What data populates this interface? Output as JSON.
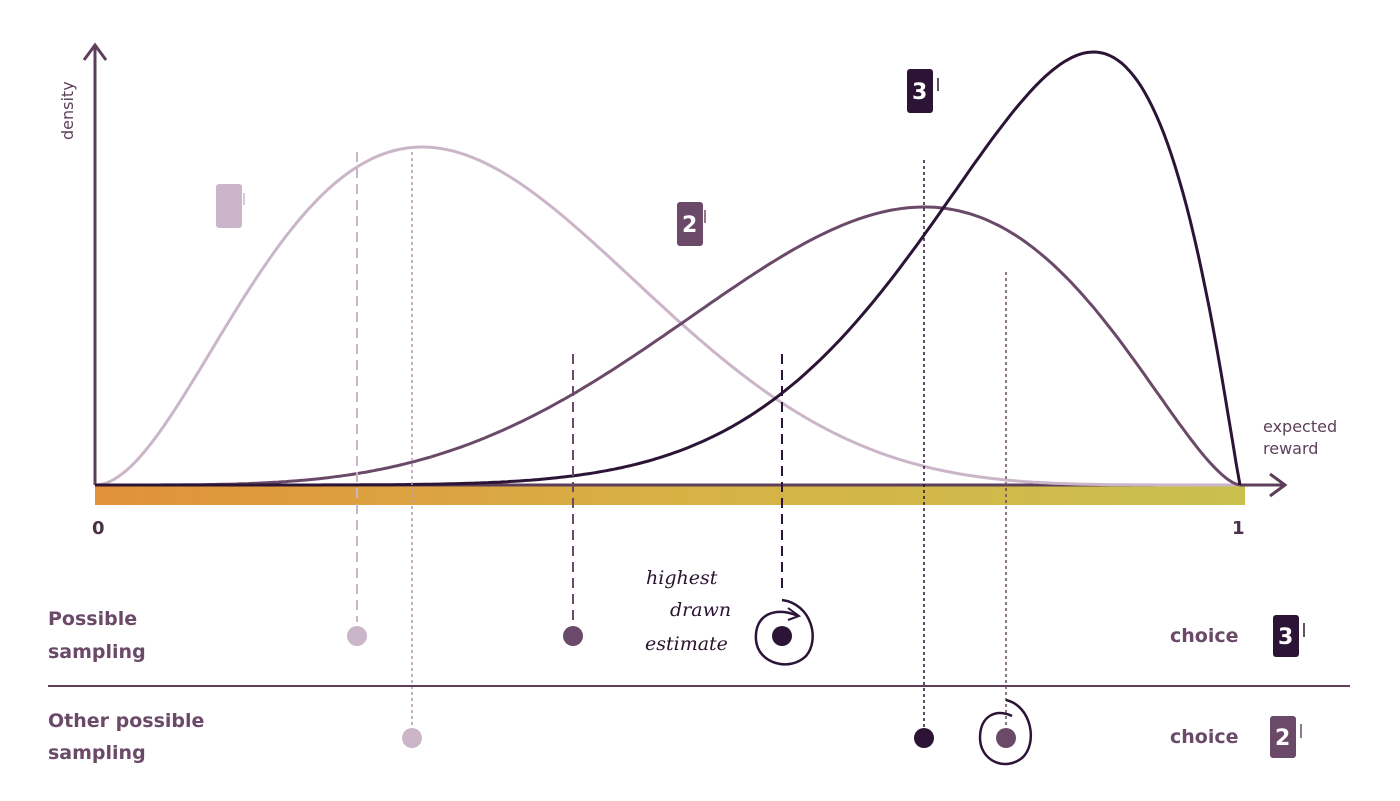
{
  "axes": {
    "y_label": "density",
    "x_label_line1": "expected",
    "x_label_line2": "reward",
    "x_min_label": "0",
    "x_max_label": "1"
  },
  "arms": [
    {
      "id": "1",
      "label": "",
      "color": "#cbb5c9"
    },
    {
      "id": "2",
      "label": "2",
      "color": "#6b4a69"
    },
    {
      "id": "3",
      "label": "3",
      "color": "#2b1436"
    }
  ],
  "rows": [
    {
      "label_line1": "Possible",
      "label_line2": "sampling",
      "choice_label": "choice",
      "choice_arm": "3"
    },
    {
      "label_line1": "Other possible",
      "label_line2": "sampling",
      "choice_label": "choice",
      "choice_arm": "2"
    }
  ],
  "annotation": {
    "line1": "highest",
    "line2": "drawn",
    "line3": "estimate"
  },
  "gradient": {
    "start": "#e0913a",
    "end": "#c9c04e"
  }
}
